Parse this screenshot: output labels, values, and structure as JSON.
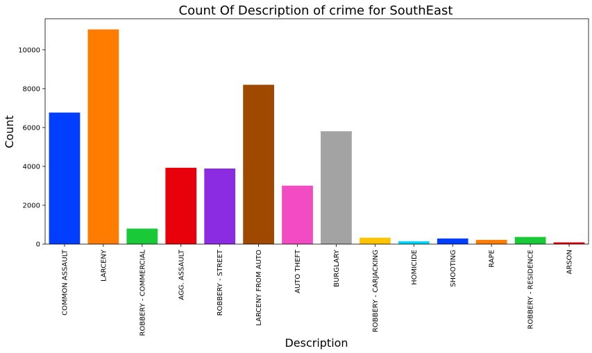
{
  "chart_data": {
    "type": "bar",
    "title": "Count Of Description of crime for SouthEast",
    "xlabel": "Description",
    "ylabel": "Count",
    "ylim": [
      0,
      11600
    ],
    "yticks": [
      0,
      2000,
      4000,
      6000,
      8000,
      10000
    ],
    "ytick_labels": [
      "0",
      "2000",
      "4000",
      "6000",
      "8000",
      "10000"
    ],
    "categories": [
      "COMMON ASSAULT",
      "LARCENY",
      "ROBBERY - COMMERCIAL",
      "AGG. ASSAULT",
      "ROBBERY - STREET",
      "LARCENY FROM AUTO",
      "AUTO THEFT",
      "BURGLARY",
      "ROBBERY - CARJACKING",
      "HOMICIDE",
      "SHOOTING",
      "RAPE",
      "ROBBERY - RESIDENCE",
      "ARSON"
    ],
    "values": [
      6770,
      11050,
      800,
      3930,
      3890,
      8200,
      3010,
      5810,
      330,
      150,
      290,
      220,
      370,
      90
    ],
    "colors": [
      "#023eff",
      "#ff7c00",
      "#1ac938",
      "#e8000b",
      "#8b2be2",
      "#9f4800",
      "#f14cc1",
      "#a3a3a3",
      "#ffc400",
      "#00d7ff",
      "#023eff",
      "#ff7c00",
      "#1ac938",
      "#e8000b"
    ],
    "grid": false,
    "legend": "none"
  }
}
